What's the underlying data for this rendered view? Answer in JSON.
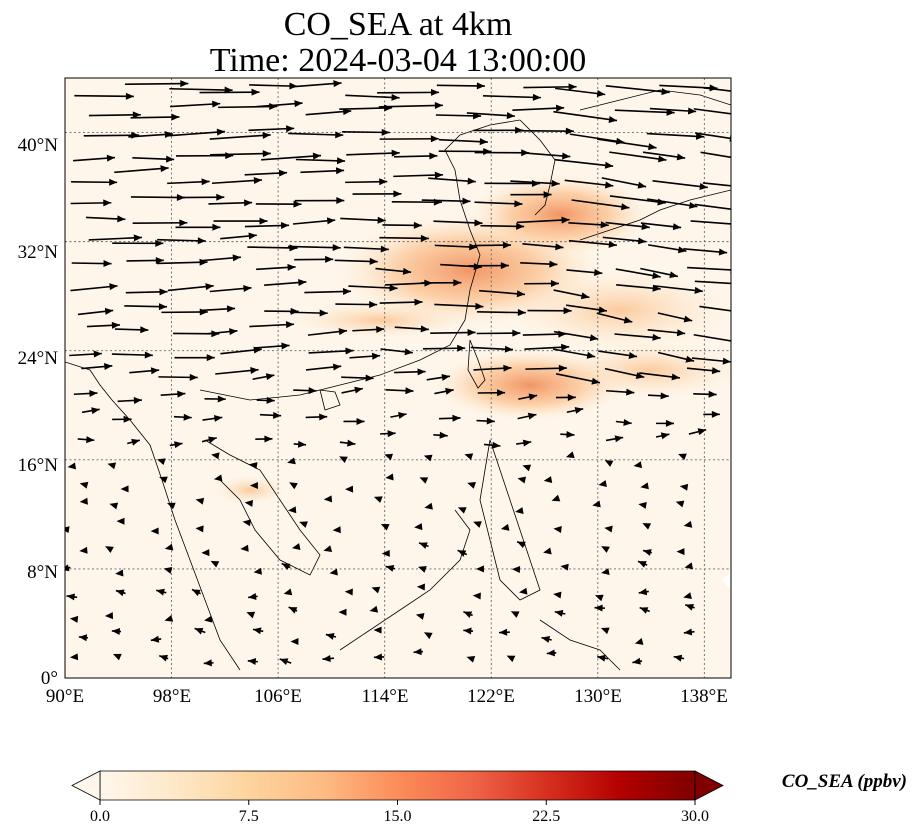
{
  "title": {
    "line1": "CO_SEA at 4km",
    "line2": "Time: 2024-03-04 13:00:00"
  },
  "map": {
    "lon_range": [
      90,
      140
    ],
    "lat_range": [
      0,
      44
    ],
    "lon_ticks": [
      "90°E",
      "98°E",
      "106°E",
      "114°E",
      "122°E",
      "130°E",
      "138°E"
    ],
    "lat_ticks": [
      "0°",
      "8°N",
      "16°N",
      "24°N",
      "32°N",
      "40°N"
    ],
    "gridlines": "dotted",
    "field_colors": {
      "background": "#fef6ea",
      "low": "#fde3c4",
      "mid": "#fbbf8a",
      "high": "#f08a56"
    },
    "wind_vectors": "black quiver arrows"
  },
  "colorbar": {
    "title": "CO_SEA (ppbv)",
    "ticks": [
      "0.0",
      "7.5",
      "15.0",
      "22.5",
      "30.0"
    ],
    "range": [
      0,
      30
    ],
    "extend": "both",
    "colormap": "OrRd",
    "colors": [
      "#fff7ec",
      "#fee8c8",
      "#fdd49e",
      "#fdbb84",
      "#fc8d59",
      "#ef6548",
      "#d7301f",
      "#b30000",
      "#7f0000"
    ]
  }
}
